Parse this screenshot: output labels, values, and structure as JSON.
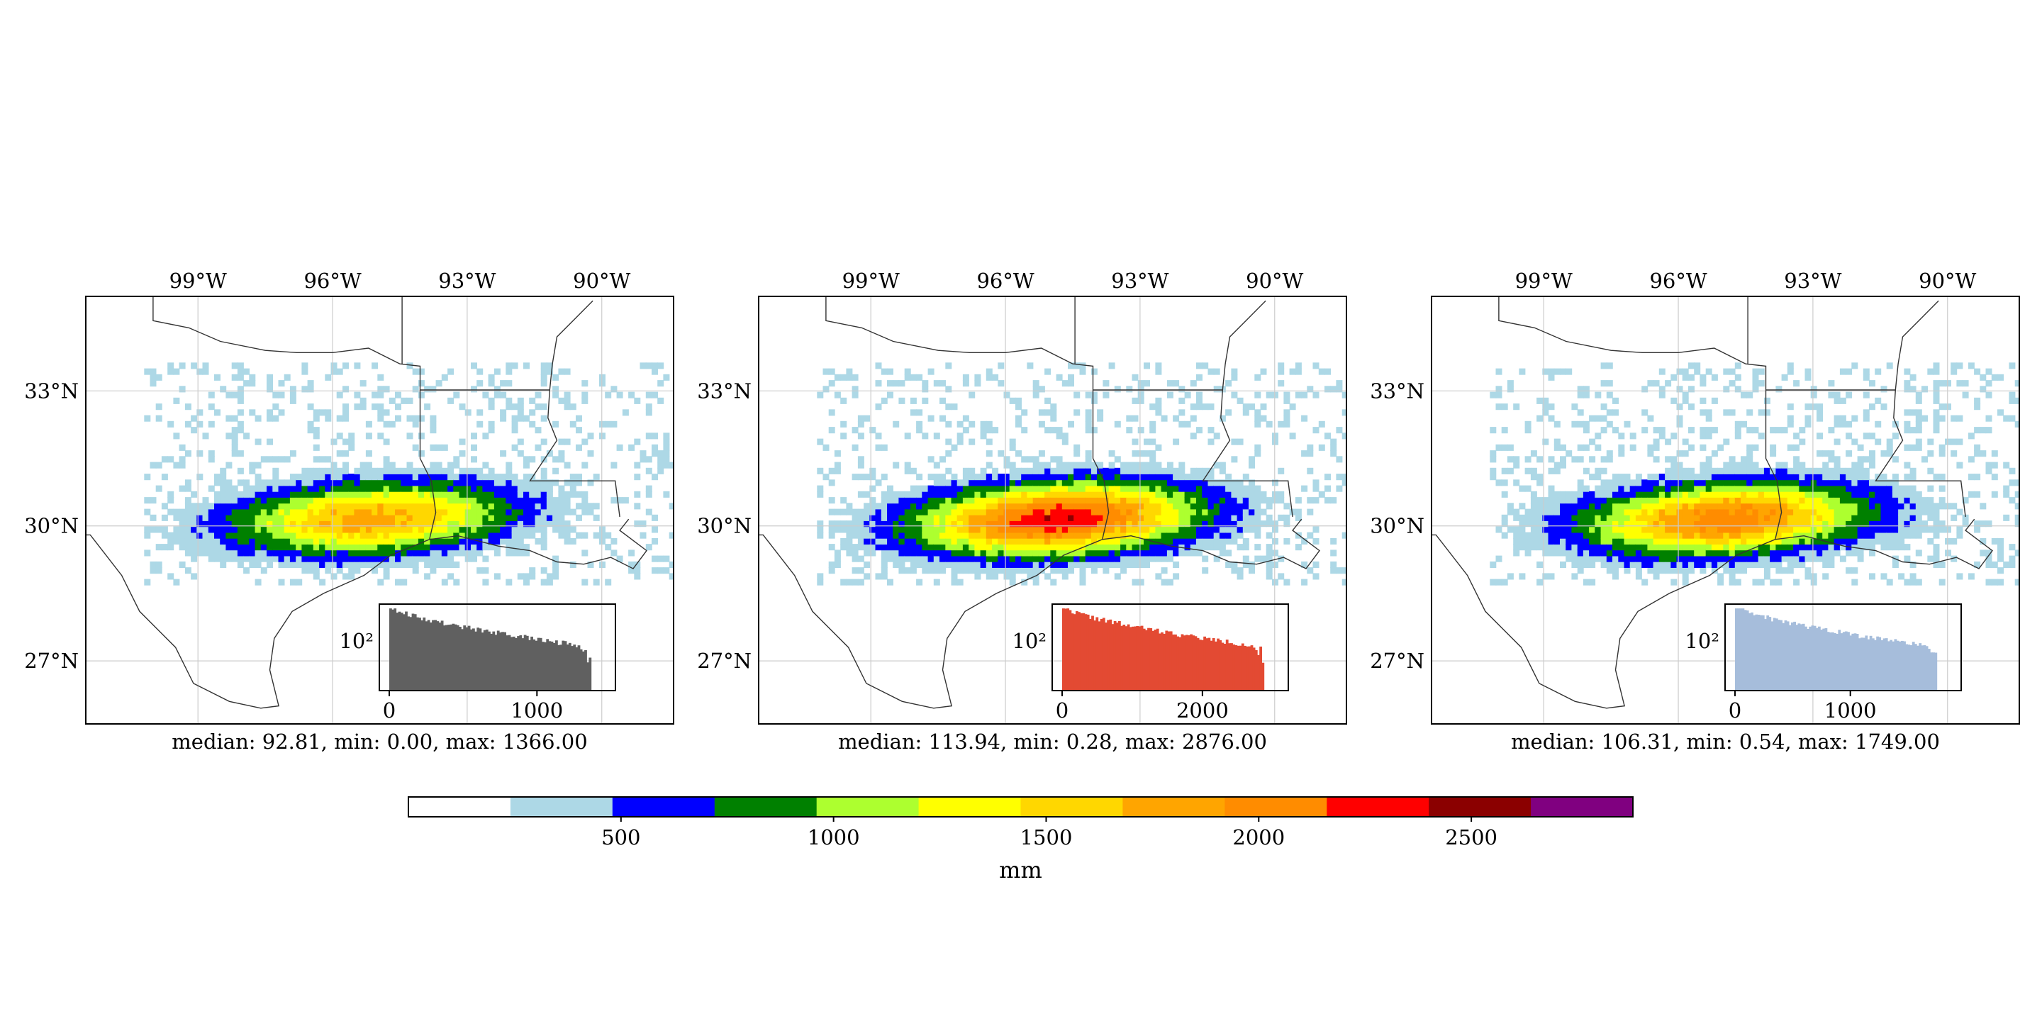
{
  "colormap": {
    "colors": [
      "#ffffff",
      "#add8e6",
      "#0000ff",
      "#008000",
      "#adff2f",
      "#ffff00",
      "#ffd700",
      "#ffa500",
      "#ff8c00",
      "#ff0000",
      "#8b0000",
      "#800080"
    ],
    "ticks": [
      "500",
      "1000",
      "1500",
      "2000",
      "2500"
    ],
    "label": "mm"
  },
  "colorbar_bounds": [
    0,
    2880
  ],
  "map_axes": {
    "lon_ticks": [
      "99°W",
      "96°W",
      "93°W",
      "90°W"
    ],
    "lat_ticks": [
      "33°N",
      "30°N",
      "27°N"
    ]
  },
  "panels": [
    {
      "caption": "median: 92.81, min: 0.00, max: 1366.00",
      "hist_color": "#606060",
      "hist_ticks": [
        "0",
        "1000"
      ],
      "hist_ylabel": "10²",
      "hist_xmax": 1366,
      "tick_values": [
        0,
        1000
      ],
      "center": [
        -95.2,
        30.1
      ],
      "scale": 1.0
    },
    {
      "caption": "median: 113.94, min: 0.28, max: 2876.00",
      "hist_color": "#e34a33",
      "hist_ticks": [
        "0",
        "2000"
      ],
      "hist_ylabel": "10²",
      "hist_xmax": 2876,
      "tick_values": [
        0,
        2000
      ],
      "center": [
        -94.9,
        30.1
      ],
      "scale": 1.3
    },
    {
      "caption": "median: 106.31, min: 0.54, max: 1749.00",
      "hist_color": "#a6bddb",
      "hist_ticks": [
        "0",
        "1000"
      ],
      "hist_ylabel": "10²",
      "hist_xmax": 1749,
      "tick_values": [
        0,
        1000
      ],
      "center": [
        -95.0,
        30.1
      ],
      "scale": 1.15
    }
  ]
}
